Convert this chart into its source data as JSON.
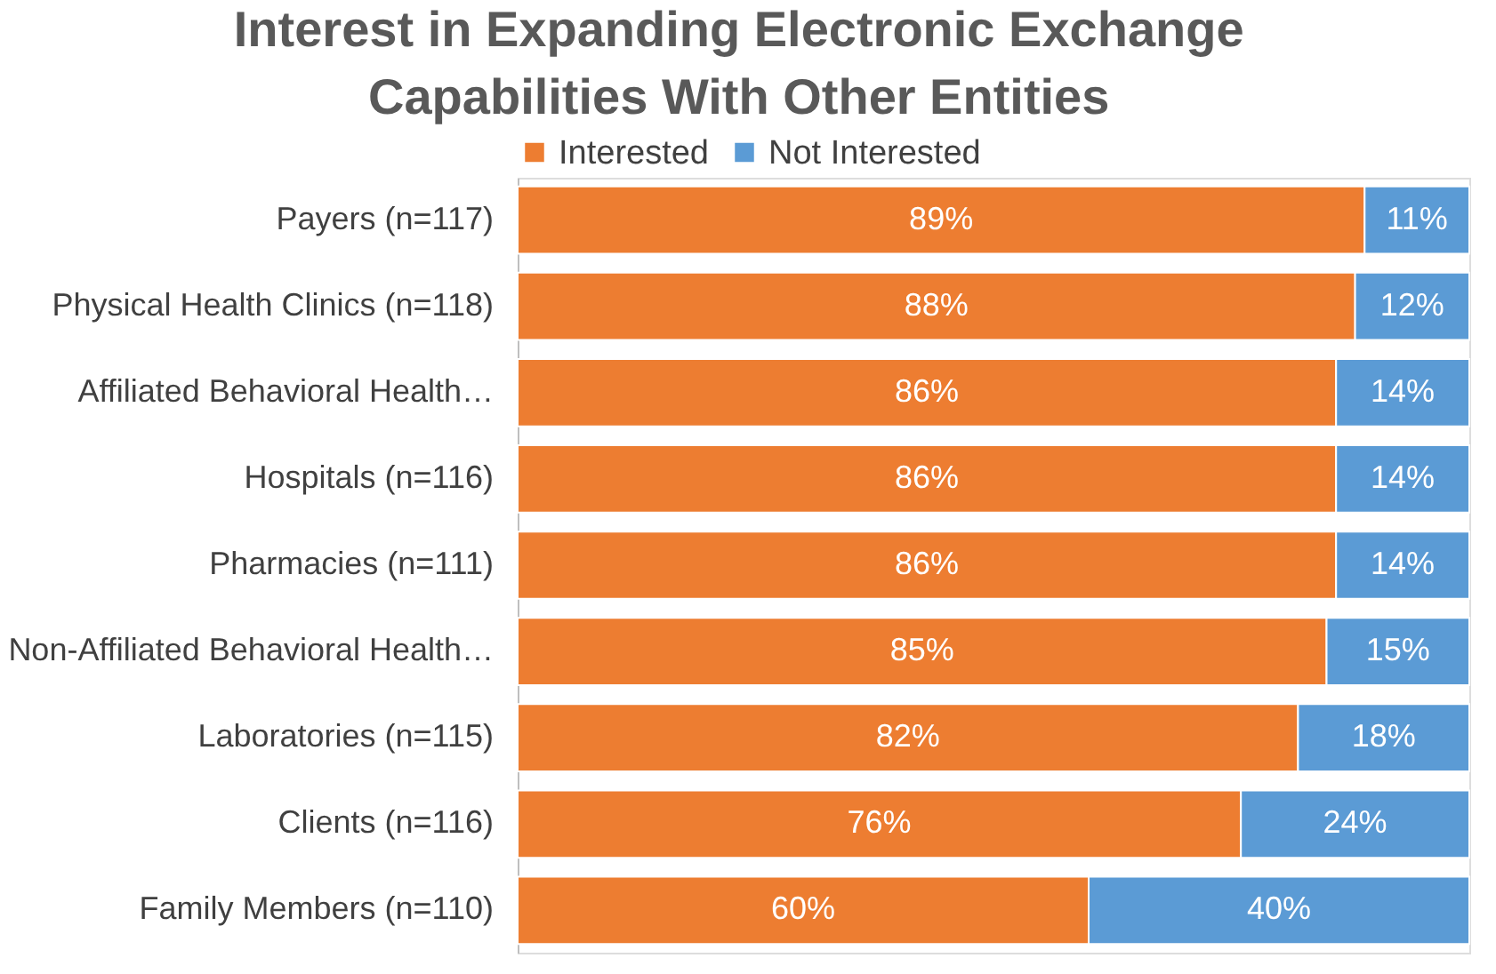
{
  "chart_data": {
    "type": "bar",
    "orientation": "horizontal",
    "stacked": true,
    "title": "Interest in Expanding Electronic Exchange Capabilities With Other Entities",
    "categories": [
      "Payers (n=117)",
      "Physical Health Clinics (n=118)",
      "Affiliated Behavioral Health…",
      "Hospitals  (n=116)",
      "Pharmacies (n=111)",
      "Non-Affiliated Behavioral Health…",
      "Laboratories (n=115)",
      "Clients (n=116)",
      "Family Members (n=110)"
    ],
    "series": [
      {
        "name": "Interested",
        "color": "#ed7d31",
        "values": [
          89,
          88,
          86,
          86,
          86,
          85,
          82,
          76,
          60
        ],
        "value_labels": [
          "89%",
          "88%",
          "86%",
          "86%",
          "86%",
          "85%",
          "82%",
          "76%",
          "60%"
        ]
      },
      {
        "name": "Not Interested",
        "color": "#5b9bd5",
        "values": [
          11,
          12,
          14,
          14,
          14,
          15,
          18,
          24,
          40
        ],
        "value_labels": [
          "11%",
          "12%",
          "14%",
          "14%",
          "14%",
          "15%",
          "18%",
          "24%",
          "40%"
        ]
      }
    ],
    "xlim": [
      0,
      100
    ],
    "legend": "top"
  }
}
